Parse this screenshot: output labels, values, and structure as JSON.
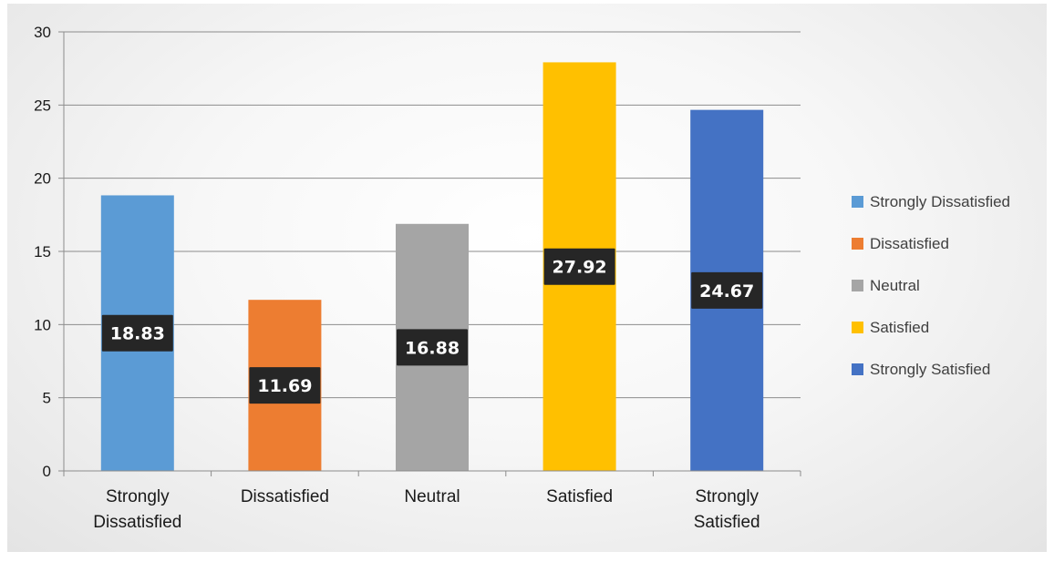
{
  "chart_data": {
    "type": "bar",
    "title": "",
    "xlabel": "",
    "ylabel": "",
    "categories": [
      "Strongly Dissatisfied",
      "Dissatisfied",
      "Neutral",
      "Satisfied",
      "Strongly Satisfied"
    ],
    "category_tick_lines": [
      [
        "Strongly",
        "Dissatisfied"
      ],
      [
        "Dissatisfied"
      ],
      [
        "Neutral"
      ],
      [
        "Satisfied"
      ],
      [
        "Strongly",
        "Satisfied"
      ]
    ],
    "values": [
      18.83,
      11.69,
      16.88,
      27.92,
      24.67
    ],
    "data_labels": [
      "18.83",
      "11.69",
      "16.88",
      "27.92",
      "24.67"
    ],
    "colors": [
      "#5b9bd5",
      "#ed7d31",
      "#a5a5a5",
      "#ffc000",
      "#4472c4"
    ],
    "ylim": [
      0,
      30
    ],
    "yticks": [
      0,
      5,
      10,
      15,
      20,
      25,
      30
    ],
    "grid": true,
    "legend": {
      "position": "right",
      "entries": [
        "Strongly Dissatisfied",
        "Dissatisfied",
        "Neutral",
        "Satisfied",
        "Strongly Satisfied"
      ]
    }
  }
}
